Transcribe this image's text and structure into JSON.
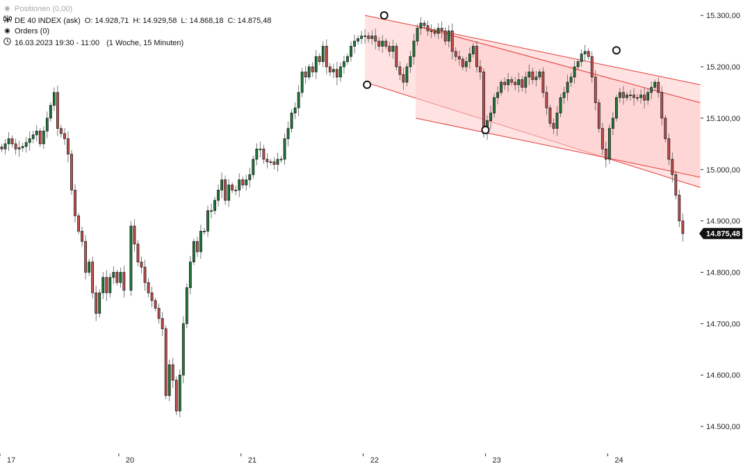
{
  "header": {
    "positions_label": "Positionen (0,00)",
    "instrument_label": "DE 40 INDEX (ask)",
    "ohlc": {
      "o": "O: 14.928,71",
      "h": "H: 14.929,58",
      "l": "L: 14.868,18",
      "c": "C: 14.875,48"
    },
    "orders_label": "Orders (0)",
    "time_range": "16.03.2023 19:30 - 11:00",
    "period": "(1 Woche, 15 Minuten)"
  },
  "colors": {
    "up": "#1f7a3a",
    "down": "#c0504d",
    "channel_line": "#e53935",
    "channel_fill": "#ffcccc",
    "last_price_bg": "#111111"
  },
  "icons": {
    "positions": "circle-dot-icon",
    "instrument": "candles-icon",
    "orders": "target-icon",
    "time": "clock-icon"
  },
  "chart_data": {
    "type": "candlestick",
    "instrument": "DE 40 INDEX (ask)",
    "interval": "15 Minuten",
    "y_axis": {
      "ylim": [
        14450,
        15330
      ],
      "ticks": [
        "15.300,00",
        "15.200,00",
        "15.100,00",
        "15.000,00",
        "14.900,00",
        "14.800,00",
        "14.700,00",
        "14.600,00",
        "14.500,00"
      ],
      "tick_values": [
        15300,
        15200,
        15100,
        15000,
        14900,
        14800,
        14700,
        14600,
        14500
      ],
      "side": "right"
    },
    "x_axis": {
      "ticks": [
        "17",
        "20",
        "21",
        "22",
        "23",
        "24"
      ],
      "tick_slots": [
        0,
        34,
        69,
        104,
        139,
        174
      ],
      "slots": 200
    },
    "last_price": "14.875,48",
    "last_price_value": 14875.48,
    "close_path": [
      [
        0,
        15040
      ],
      [
        2,
        15060
      ],
      [
        4,
        15040
      ],
      [
        6,
        15045
      ],
      [
        8,
        15060
      ],
      [
        10,
        15075
      ],
      [
        11,
        15050
      ],
      [
        13,
        15100
      ],
      [
        15,
        15150
      ],
      [
        16,
        15080
      ],
      [
        18,
        15060
      ],
      [
        19,
        15030
      ],
      [
        20,
        14960
      ],
      [
        21,
        14910
      ],
      [
        22,
        14880
      ],
      [
        23,
        14860
      ],
      [
        24,
        14800
      ],
      [
        25,
        14820
      ],
      [
        26,
        14760
      ],
      [
        27,
        14720
      ],
      [
        28,
        14760
      ],
      [
        29,
        14790
      ],
      [
        30,
        14760
      ],
      [
        31,
        14790
      ],
      [
        32,
        14800
      ],
      [
        33,
        14780
      ],
      [
        34,
        14800
      ],
      [
        35,
        14765
      ],
      [
        37,
        14890
      ],
      [
        39,
        14820
      ],
      [
        40,
        14810
      ],
      [
        41,
        14780
      ],
      [
        42,
        14760
      ],
      [
        44,
        14730
      ],
      [
        45,
        14710
      ],
      [
        46,
        14690
      ],
      [
        47,
        14560
      ],
      [
        48,
        14620
      ],
      [
        49,
        14590
      ],
      [
        50,
        14530
      ],
      [
        51,
        14600
      ],
      [
        52,
        14700
      ],
      [
        53,
        14770
      ],
      [
        54,
        14820
      ],
      [
        55,
        14860
      ],
      [
        56,
        14840
      ],
      [
        57,
        14880
      ],
      [
        58,
        14880
      ],
      [
        59,
        14920
      ],
      [
        60,
        14920
      ],
      [
        61,
        14940
      ],
      [
        62,
        14960
      ],
      [
        63,
        14980
      ],
      [
        64,
        14940
      ],
      [
        65,
        14970
      ],
      [
        66,
        14960
      ],
      [
        67,
        14960
      ],
      [
        68,
        14980
      ],
      [
        69,
        14970
      ],
      [
        70,
        14980
      ],
      [
        71,
        14990
      ],
      [
        72,
        15020
      ],
      [
        73,
        15040
      ],
      [
        74,
        15040
      ],
      [
        75,
        15020
      ],
      [
        76,
        15015
      ],
      [
        77,
        15015
      ],
      [
        78,
        15010
      ],
      [
        79,
        15020
      ],
      [
        80,
        15020
      ],
      [
        81,
        15060
      ],
      [
        82,
        15080
      ],
      [
        83,
        15110
      ],
      [
        84,
        15120
      ],
      [
        85,
        15150
      ],
      [
        86,
        15190
      ],
      [
        87,
        15180
      ],
      [
        88,
        15200
      ],
      [
        89,
        15190
      ],
      [
        90,
        15220
      ],
      [
        91,
        15210
      ],
      [
        92,
        15240
      ],
      [
        93,
        15200
      ],
      [
        94,
        15190
      ],
      [
        95,
        15195
      ],
      [
        96,
        15180
      ],
      [
        97,
        15200
      ],
      [
        98,
        15210
      ],
      [
        99,
        15220
      ],
      [
        100,
        15240
      ],
      [
        101,
        15250
      ],
      [
        102,
        15255
      ],
      [
        103,
        15260
      ],
      [
        104,
        15260
      ],
      [
        105,
        15255
      ],
      [
        106,
        15260
      ],
      [
        107,
        15250
      ],
      [
        108,
        15240
      ],
      [
        109,
        15250
      ],
      [
        110,
        15240
      ],
      [
        111,
        15230
      ],
      [
        112,
        15240
      ],
      [
        113,
        15200
      ],
      [
        114,
        15185
      ],
      [
        115,
        15170
      ],
      [
        116,
        15200
      ],
      [
        117,
        15220
      ],
      [
        118,
        15250
      ],
      [
        119,
        15275
      ],
      [
        120,
        15285
      ],
      [
        121,
        15280
      ],
      [
        122,
        15270
      ],
      [
        123,
        15270
      ],
      [
        124,
        15265
      ],
      [
        125,
        15275
      ],
      [
        126,
        15270
      ],
      [
        127,
        15250
      ],
      [
        128,
        15270
      ],
      [
        129,
        15230
      ],
      [
        130,
        15220
      ],
      [
        131,
        15215
      ],
      [
        132,
        15200
      ],
      [
        133,
        15210
      ],
      [
        134,
        15225
      ],
      [
        135,
        15240
      ],
      [
        136,
        15200
      ],
      [
        137,
        15190
      ],
      [
        138,
        15070
      ],
      [
        139,
        15095
      ],
      [
        140,
        15110
      ],
      [
        141,
        15140
      ],
      [
        142,
        15150
      ],
      [
        143,
        15170
      ],
      [
        144,
        15165
      ],
      [
        145,
        15175
      ],
      [
        146,
        15170
      ],
      [
        147,
        15165
      ],
      [
        148,
        15175
      ],
      [
        149,
        15160
      ],
      [
        150,
        15180
      ],
      [
        151,
        15190
      ],
      [
        152,
        15175
      ],
      [
        153,
        15180
      ],
      [
        154,
        15190
      ],
      [
        155,
        15150
      ],
      [
        156,
        15120
      ],
      [
        157,
        15090
      ],
      [
        158,
        15080
      ],
      [
        159,
        15110
      ],
      [
        160,
        15140
      ],
      [
        161,
        15150
      ],
      [
        162,
        15170
      ],
      [
        163,
        15180
      ],
      [
        164,
        15200
      ],
      [
        165,
        15210
      ],
      [
        166,
        15225
      ],
      [
        167,
        15230
      ],
      [
        168,
        15220
      ],
      [
        169,
        15180
      ],
      [
        170,
        15130
      ],
      [
        171,
        15080
      ],
      [
        172,
        15040
      ],
      [
        173,
        15020
      ],
      [
        174,
        15080
      ],
      [
        175,
        15100
      ],
      [
        176,
        15140
      ],
      [
        177,
        15150
      ],
      [
        178,
        15140
      ],
      [
        179,
        15145
      ],
      [
        180,
        15145
      ],
      [
        181,
        15140
      ],
      [
        182,
        15140
      ],
      [
        183,
        15145
      ],
      [
        184,
        15135
      ],
      [
        185,
        15150
      ],
      [
        186,
        15160
      ],
      [
        187,
        15170
      ],
      [
        188,
        15150
      ],
      [
        189,
        15100
      ],
      [
        190,
        15060
      ],
      [
        191,
        15020
      ],
      [
        192,
        14990
      ],
      [
        193,
        14950
      ],
      [
        194,
        14900
      ],
      [
        195,
        14875.48
      ]
    ],
    "channels": [
      {
        "upper": [
          [
            104,
            15300
          ],
          [
            200,
            15165
          ]
        ],
        "lower": [
          [
            104,
            15170
          ],
          [
            200,
            14965
          ]
        ]
      },
      {
        "upper": [
          [
            118.5,
            15280
          ],
          [
            200,
            15130
          ]
        ],
        "lower": [
          [
            118.5,
            15100
          ],
          [
            200,
            14985
          ]
        ]
      }
    ],
    "pivots": [
      [
        104.6,
        15165
      ],
      [
        109.5,
        15300
      ],
      [
        138.5,
        15077
      ],
      [
        176,
        15232
      ]
    ],
    "title": "",
    "xlabel": "",
    "ylabel": "",
    "grid": false
  }
}
